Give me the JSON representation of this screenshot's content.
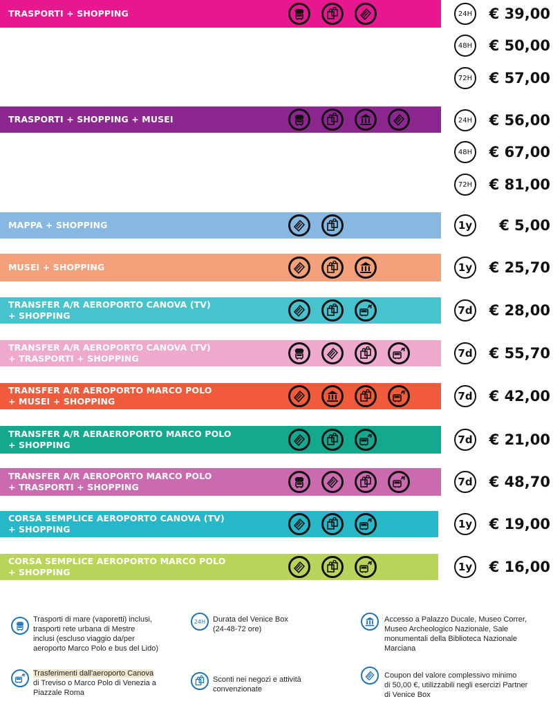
{
  "colors": {
    "magenta": "#e6178f",
    "purple": "#8e2690",
    "light_blue": "#86b8e2",
    "salmon": "#f4a07b",
    "teal": "#47c3ce",
    "pink": "#efa9cc",
    "red_orange": "#f15a3a",
    "green_teal": "#14a88e",
    "orchid": "#cc6ab0",
    "cyan": "#26b7c8",
    "lime": "#b8d55a",
    "legend_blue": "#1e73b8"
  },
  "products": [
    {
      "label": "TRASPORTI + SHOPPING",
      "color": "#e6178f",
      "icons": [
        "transport-icon",
        "shopping-icon",
        "coupon-icon"
      ],
      "options": [
        {
          "duration": "24H",
          "price": "€ 39,00"
        },
        {
          "duration": "48H",
          "price": "€ 50,00"
        },
        {
          "duration": "72H",
          "price": "€ 57,00"
        }
      ]
    },
    {
      "label": "TRASPORTI + SHOPPING + MUSEI",
      "color": "#8e2690",
      "icons": [
        "transport-icon",
        "shopping-icon",
        "museum-icon",
        "coupon-icon"
      ],
      "options": [
        {
          "duration": "24H",
          "price": "€ 56,00"
        },
        {
          "duration": "48H",
          "price": "€ 67,00"
        },
        {
          "duration": "72H",
          "price": "€ 81,00"
        }
      ]
    },
    {
      "label": "MAPPA + SHOPPING",
      "color": "#86b8e2",
      "icons": [
        "coupon-icon",
        "shopping-icon"
      ],
      "options": [
        {
          "duration": "1y",
          "price": "€ 5,00"
        }
      ]
    },
    {
      "label": "MUSEI + SHOPPING",
      "color": "#f4a07b",
      "icons": [
        "coupon-icon",
        "shopping-icon",
        "museum-icon"
      ],
      "options": [
        {
          "duration": "1y",
          "price": "€ 25,70"
        }
      ]
    },
    {
      "label": "TRANSFER A/R AEROPORTO CANOVA (TV)\n+ SHOPPING",
      "color": "#47c3ce",
      "icons": [
        "coupon-icon",
        "shopping-icon",
        "airport-bus-icon"
      ],
      "options": [
        {
          "duration": "7d",
          "price": "€ 28,00"
        }
      ]
    },
    {
      "label": "TRANSFER A/R AEROPORTO CANOVA (TV)\n+ TRASPORTI + SHOPPING",
      "color": "#efa9cc",
      "icons": [
        "transport-icon",
        "coupon-icon",
        "shopping-icon",
        "airport-bus-icon"
      ],
      "options": [
        {
          "duration": "7d",
          "price": "€ 55,70"
        }
      ]
    },
    {
      "label": "TRANSFER A/R AEROPORTO MARCO POLO\n+ MUSEI + SHOPPING",
      "color": "#f15a3a",
      "icons": [
        "coupon-icon",
        "museum-icon",
        "shopping-icon",
        "airport-bus-icon"
      ],
      "options": [
        {
          "duration": "7d",
          "price": "€ 42,00"
        }
      ]
    },
    {
      "label": "TRANSFER A/R AERAEROPORTO MARCO POLO\n+ SHOPPING",
      "color": "#14a88e",
      "icons": [
        "coupon-icon",
        "shopping-icon",
        "airport-bus-icon"
      ],
      "options": [
        {
          "duration": "7d",
          "price": "€ 21,00"
        }
      ]
    },
    {
      "label": "TRANSFER A/R AEROPORTO MARCO POLO\n+ TRASPORTI + SHOPPING",
      "color": "#cc6ab0",
      "icons": [
        "transport-icon",
        "coupon-icon",
        "shopping-icon",
        "airport-bus-icon"
      ],
      "options": [
        {
          "duration": "7d",
          "price": "€ 48,70"
        }
      ]
    },
    {
      "label": "CORSA SEMPLICE AEROPORTO CANOVA (TV)\n+ SHOPPING",
      "color": "#26b7c8",
      "icons": [
        "coupon-icon",
        "shopping-icon",
        "airport-bus-icon"
      ],
      "options": [
        {
          "duration": "1y",
          "price": "€ 19,00"
        }
      ]
    },
    {
      "label": "CORSA SEMPLICE AEROPORTO MARCO POLO\n+ SHOPPING",
      "color": "#b8d55a",
      "icons": [
        "coupon-icon",
        "shopping-icon",
        "airport-bus-icon"
      ],
      "options": [
        {
          "duration": "1y",
          "price": "€ 16,00"
        }
      ]
    }
  ],
  "legend": [
    {
      "icon": "transport-icon",
      "text": "Trasporti di mare (vaporetti) inclusi,\ntrasporti rete urbana di Mestre\ninclusi (escluso viaggio da/per\naeroporto Marco Polo e bus del Lido)"
    },
    {
      "icon": "24h-icon",
      "icon_text": "24H",
      "text": "Durata del Venice Box\n(24-48-72 ore)"
    },
    {
      "icon": "museum-icon",
      "text": "Accesso a Palazzo Ducale, Museo Correr,\nMuseo Archeologico Nazionale, Sale\nmonumentali della Biblioteca Nazionale\nMarciana"
    },
    {
      "icon": "airport-bus-icon",
      "text_highlight": "Trasferimenti dall'aeroporto Canova",
      "text": "di Treviso o Marco Polo di Venezia a\nPiazzale Roma"
    },
    {
      "icon": "shopping-icon",
      "text": "Sconti nei negozi e attività\nconvenzionate"
    },
    {
      "icon": "coupon-icon",
      "text": "Coupon del valore complessivo minimo\ndi 50,00 €, utilizzabili negli esercizi Partner\ndi Venice Box"
    }
  ]
}
